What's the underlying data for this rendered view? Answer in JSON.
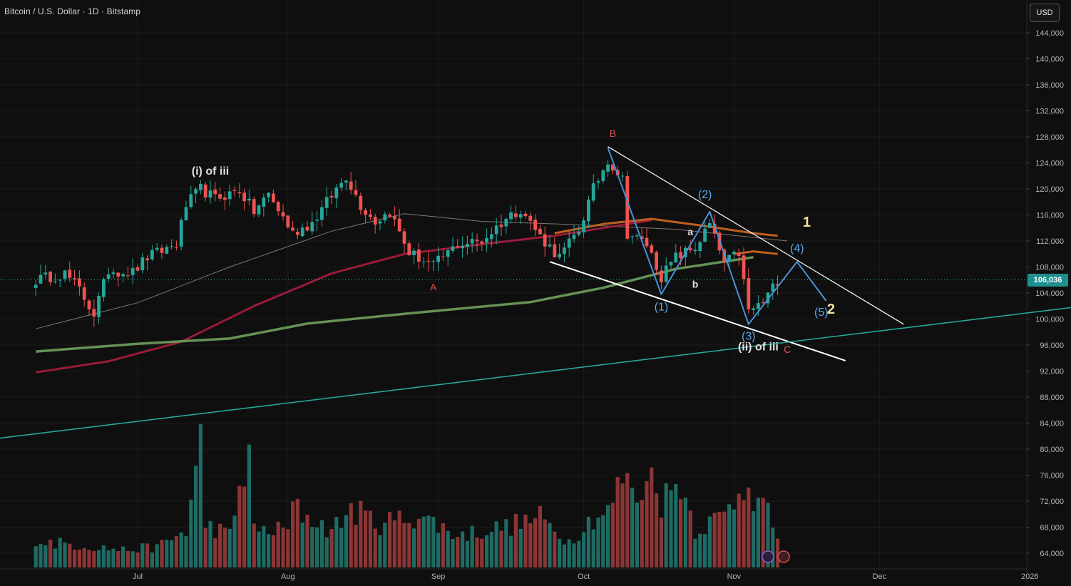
{
  "header": {
    "title": "Bitcoin / U.S. Dollar · 1D · Bitstamp"
  },
  "currency_button": "USD",
  "last_price_label": "106,036",
  "colors": {
    "background": "#0f0f0f",
    "grid": "#1c1c1c",
    "up": "#26a69a",
    "down": "#ef5350",
    "vol_up": "#1e6b64",
    "vol_down": "#8c3535",
    "ma_long": "#6a9a5a",
    "ma_mid": "#a01c3c",
    "ma_short": "#8a7a78",
    "ma_orange": "#c8641e",
    "trend_teal": "#26a69a",
    "wave_blue": "#4a90d9",
    "wave_label_blue": "#5ea8e8",
    "label_red": "#e05050",
    "label_white": "#e0e0e0",
    "label_yellow": "#f0e0a0"
  },
  "chart_data": {
    "type": "candlestick",
    "x_tick_labels": [
      "Jul",
      "Aug",
      "Sep",
      "Oct",
      "Nov",
      "Dec",
      "2026"
    ],
    "y_tick_labels": [
      "144,000",
      "140,000",
      "136,000",
      "132,000",
      "128,000",
      "124,000",
      "120,000",
      "116,000",
      "112,000",
      "108,000",
      "104,000",
      "100,000",
      "96,000",
      "92,000",
      "88,000",
      "84,000",
      "80,000",
      "76,000",
      "72,000",
      "68,000",
      "64,000"
    ],
    "ylim": [
      62000,
      148000
    ],
    "last_price": 106036,
    "price_anchors": [
      [
        "2025-06-10",
        106000
      ],
      [
        "2025-06-16",
        107000
      ],
      [
        "2025-06-19",
        104500
      ],
      [
        "2025-06-22",
        100800
      ],
      [
        "2025-06-25",
        107500
      ],
      [
        "2025-06-30",
        107200
      ],
      [
        "2025-07-03",
        109500
      ],
      [
        "2025-07-09",
        111500
      ],
      [
        "2025-07-11",
        117500
      ],
      [
        "2025-07-14",
        120000
      ],
      [
        "2025-07-17",
        118500
      ],
      [
        "2025-07-22",
        119800
      ],
      [
        "2025-07-25",
        116500
      ],
      [
        "2025-07-28",
        119200
      ],
      [
        "2025-08-02",
        113200
      ],
      [
        "2025-08-06",
        114800
      ],
      [
        "2025-08-10",
        119000
      ],
      [
        "2025-08-13",
        122000
      ],
      [
        "2025-08-16",
        117500
      ],
      [
        "2025-08-19",
        115000
      ],
      [
        "2025-08-22",
        116500
      ],
      [
        "2025-08-26",
        110200
      ],
      [
        "2025-08-31",
        108200
      ],
      [
        "2025-09-05",
        111500
      ],
      [
        "2025-09-10",
        112000
      ],
      [
        "2025-09-15",
        115500
      ],
      [
        "2025-09-18",
        117000
      ],
      [
        "2025-09-22",
        112700
      ],
      [
        "2025-09-26",
        109500
      ],
      [
        "2025-09-30",
        113700
      ],
      [
        "2025-10-03",
        120000
      ],
      [
        "2025-10-06",
        124500
      ],
      [
        "2025-10-09",
        121500
      ],
      [
        "2025-10-10",
        113200
      ],
      [
        "2025-10-14",
        111500
      ],
      [
        "2025-10-17",
        106500
      ],
      [
        "2025-10-20",
        109500
      ],
      [
        "2025-10-24",
        111000
      ],
      [
        "2025-10-27",
        114500
      ],
      [
        "2025-10-30",
        108500
      ],
      [
        "2025-11-02",
        110200
      ],
      [
        "2025-11-04",
        101200
      ],
      [
        "2025-11-07",
        102500
      ],
      [
        "2025-11-10",
        106000
      ]
    ],
    "series_lines": [
      {
        "points": [
          [
            "2025-06-10",
            98500
          ],
          [
            "2025-07-01",
            102500
          ],
          [
            "2025-07-20",
            108000
          ],
          [
            "2025-08-10",
            113500
          ],
          [
            "2025-08-25",
            116200
          ],
          [
            "2025-09-10",
            115000
          ],
          [
            "2025-09-30",
            114500
          ],
          [
            "2025-10-20",
            113800
          ],
          [
            "2025-11-12",
            112000
          ]
        ]
      },
      {
        "points": [
          [
            "2025-06-10",
            91800
          ],
          [
            "2025-06-25",
            93500
          ],
          [
            "2025-07-10",
            96500
          ],
          [
            "2025-07-25",
            102000
          ],
          [
            "2025-08-10",
            107000
          ],
          [
            "2025-08-25",
            110000
          ],
          [
            "2025-09-10",
            111500
          ],
          [
            "2025-09-25",
            112800
          ],
          [
            "2025-10-05",
            114000
          ],
          [
            "2025-10-15",
            115200
          ]
        ]
      },
      {
        "points": [
          [
            "2025-06-10",
            95000
          ],
          [
            "2025-07-01",
            96200
          ],
          [
            "2025-07-20",
            97000
          ],
          [
            "2025-08-05",
            99300
          ],
          [
            "2025-08-25",
            100800
          ],
          [
            "2025-09-20",
            102600
          ],
          [
            "2025-10-05",
            104800
          ],
          [
            "2025-10-20",
            107700
          ],
          [
            "2025-11-05",
            109500
          ]
        ]
      },
      {
        "points": [
          [
            "2025-09-25",
            113200
          ],
          [
            "2025-10-05",
            114600
          ],
          [
            "2025-10-15",
            115400
          ],
          [
            "2025-10-25",
            114400
          ],
          [
            "2025-11-05",
            113200
          ],
          [
            "2025-11-10",
            112800
          ]
        ]
      },
      {
        "points": [
          [
            "2025-11-01",
            110000
          ],
          [
            "2025-11-05",
            110400
          ],
          [
            "2025-11-10",
            110000
          ]
        ]
      }
    ],
    "volume_profile": [
      [
        "2025-06-10",
        0.18
      ],
      [
        "2025-06-20",
        0.15
      ],
      [
        "2025-06-28",
        0.12
      ],
      [
        "2025-07-05",
        0.14
      ],
      [
        "2025-07-11",
        0.25
      ],
      [
        "2025-07-14",
        0.85
      ],
      [
        "2025-07-15",
        0.3
      ],
      [
        "2025-07-20",
        0.22
      ],
      [
        "2025-07-24",
        0.83
      ],
      [
        "2025-07-25",
        0.25
      ],
      [
        "2025-08-01",
        0.26
      ],
      [
        "2025-08-02",
        0.41
      ],
      [
        "2025-08-10",
        0.25
      ],
      [
        "2025-08-14",
        0.4
      ],
      [
        "2025-08-20",
        0.3
      ],
      [
        "2025-08-28",
        0.36
      ],
      [
        "2025-09-05",
        0.22
      ],
      [
        "2025-09-15",
        0.28
      ],
      [
        "2025-09-22",
        0.34
      ],
      [
        "2025-09-28",
        0.18
      ],
      [
        "2025-10-03",
        0.35
      ],
      [
        "2025-10-06",
        0.38
      ],
      [
        "2025-10-10",
        0.68
      ],
      [
        "2025-10-11",
        0.47
      ],
      [
        "2025-10-16",
        0.66
      ],
      [
        "2025-10-17",
        0.45
      ],
      [
        "2025-10-21",
        0.6
      ],
      [
        "2025-10-24",
        0.26
      ],
      [
        "2025-10-30",
        0.36
      ],
      [
        "2025-11-03",
        0.58
      ],
      [
        "2025-11-04",
        0.72
      ],
      [
        "2025-11-05",
        0.45
      ],
      [
        "2025-11-07",
        0.42
      ],
      [
        "2025-11-10",
        0.22
      ]
    ],
    "trendlines": [
      {
        "name": "upper-wedge-line",
        "from": [
          "2025-10-06",
          126500
        ],
        "to": [
          "2025-12-06",
          99200
        ]
      },
      {
        "name": "lower-wedge-line",
        "from": [
          "2025-09-24",
          108800
        ],
        "to": [
          "2025-11-24",
          93600
        ]
      },
      {
        "name": "long-term-support",
        "from": [
          "2025-05-15",
          80000
        ],
        "to": [
          "2026-01-10",
          101800
        ]
      }
    ],
    "wave_path": [
      [
        "2025-10-06",
        126300
      ],
      [
        "2025-10-17",
        103800
      ],
      [
        "2025-10-27",
        116500
      ],
      [
        "2025-11-04",
        99200
      ],
      [
        "2025-11-14",
        108800
      ],
      [
        "2025-11-20",
        102800
      ]
    ],
    "annotations": [
      {
        "text": "(i) of iii",
        "at": [
          "2025-07-16",
          122200
        ],
        "style": "white-bold"
      },
      {
        "text": "A",
        "at": [
          "2025-08-31",
          104400
        ],
        "style": "red"
      },
      {
        "text": "B",
        "at": [
          "2025-10-07",
          128000
        ],
        "style": "red"
      },
      {
        "text": "a",
        "at": [
          "2025-10-23",
          112900
        ],
        "style": "white"
      },
      {
        "text": "b",
        "at": [
          "2025-10-24",
          104800
        ],
        "style": "white"
      },
      {
        "text": "(1)",
        "at": [
          "2025-10-17",
          101300
        ],
        "style": "blue"
      },
      {
        "text": "(2)",
        "at": [
          "2025-10-26",
          118600
        ],
        "style": "blue"
      },
      {
        "text": "(3)",
        "at": [
          "2025-11-04",
          96800
        ],
        "style": "blue"
      },
      {
        "text": "(4)",
        "at": [
          "2025-11-14",
          110300
        ],
        "style": "blue"
      },
      {
        "text": "(5)",
        "at": [
          "2025-11-19",
          100500
        ],
        "style": "blue"
      },
      {
        "text": "1",
        "at": [
          "2025-11-16",
          114200
        ],
        "style": "yellow"
      },
      {
        "text": "2",
        "at": [
          "2025-11-21",
          100800
        ],
        "style": "yellow"
      },
      {
        "text": "(ii) of iii",
        "at": [
          "2025-11-06",
          95200
        ],
        "style": "white-bold"
      },
      {
        "text": "C",
        "at": [
          "2025-11-12",
          94800
        ],
        "style": "red"
      }
    ]
  }
}
